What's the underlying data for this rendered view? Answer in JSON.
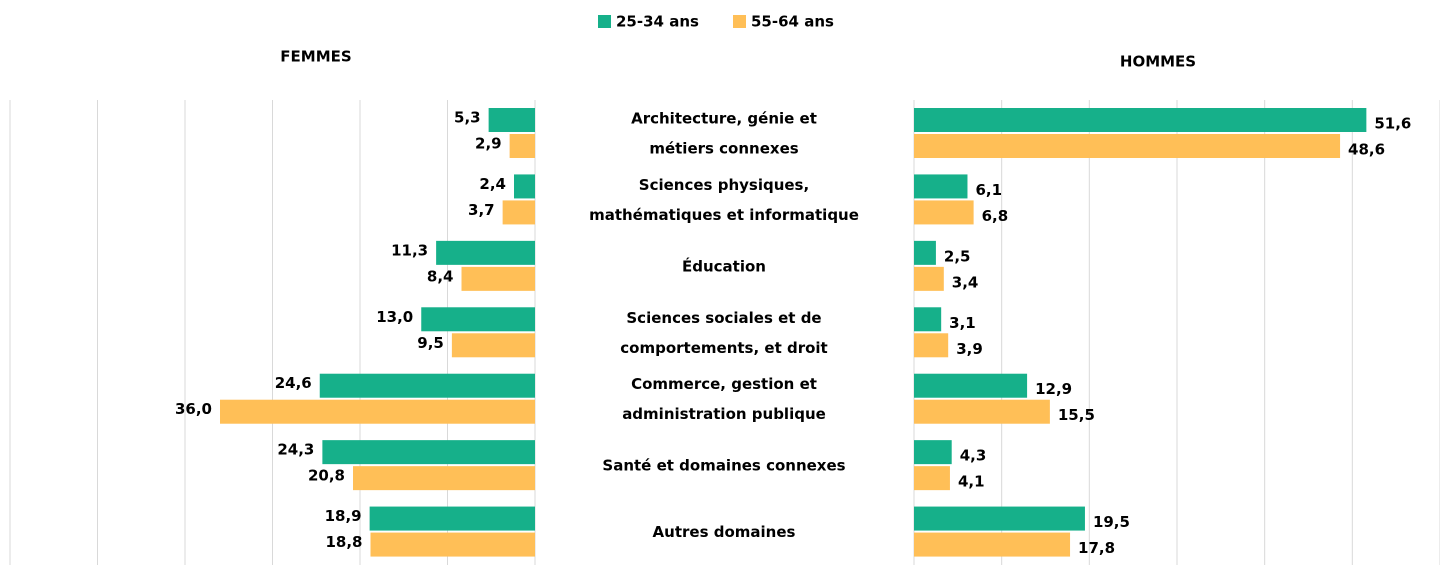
{
  "chart_data": {
    "type": "butterfly-bar",
    "legend": "top",
    "grid": true,
    "categories": [
      [
        "Architecture, génie et",
        "métiers connexes"
      ],
      [
        "Sciences physiques,",
        "mathématiques et informatique"
      ],
      [
        "Éducation"
      ],
      [
        "Sciences sociales et de",
        "comportements, et droit"
      ],
      [
        "Commerce, gestion et",
        "administration publique"
      ],
      [
        "Santé et domaines connexes"
      ],
      [
        "Autres domaines"
      ]
    ],
    "series": [
      {
        "name": "25-34 ans",
        "color": "#16b08a"
      },
      {
        "name": "55-64 ans",
        "color": "#ffbf57"
      }
    ],
    "panels": [
      {
        "title": "FEMMES",
        "direction": "left",
        "xlim": [
          0,
          60
        ],
        "xticks": [
          0,
          10,
          20,
          30,
          40,
          50,
          60
        ],
        "values": [
          [
            5.3,
            2.4,
            11.3,
            13.0,
            24.6,
            24.3,
            18.9
          ],
          [
            2.9,
            3.7,
            8.4,
            9.5,
            36.0,
            20.8,
            18.8
          ]
        ],
        "value_labels": [
          [
            "5,3",
            "2,4",
            "11,3",
            "13,0",
            "24,6",
            "24,3",
            "18,9"
          ],
          [
            "2,9",
            "3,7",
            "8,4",
            "9,5",
            "36,0",
            "20,8",
            "18,8"
          ]
        ]
      },
      {
        "title": "HOMMES",
        "direction": "right",
        "xlim": [
          0,
          60
        ],
        "xticks": [
          0,
          10,
          20,
          30,
          40,
          50,
          60
        ],
        "values": [
          [
            51.6,
            6.1,
            2.5,
            3.1,
            12.9,
            4.3,
            19.5
          ],
          [
            48.6,
            6.8,
            3.4,
            3.9,
            15.5,
            4.1,
            17.8
          ]
        ],
        "value_labels": [
          [
            "51,6",
            "6,1",
            "2,5",
            "3,1",
            "12,9",
            "4,3",
            "19,5"
          ],
          [
            "48,6",
            "6,8",
            "3,4",
            "3,9",
            "15,5",
            "4,1",
            "17,8"
          ]
        ]
      }
    ]
  }
}
